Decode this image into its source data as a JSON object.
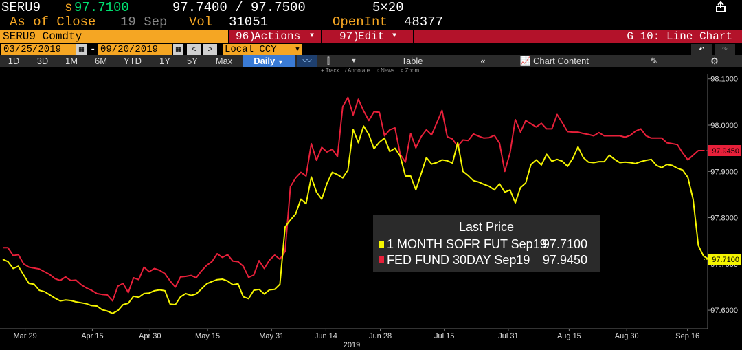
{
  "quote": {
    "ticker": "SERU9",
    "last_prefix": "s",
    "last": "97.7100",
    "bid_ask": "97.7400 / 97.7500",
    "size": "5×20"
  },
  "sub": {
    "as_of": "As of Close",
    "date": "19 Sep",
    "vol_label": "Vol",
    "vol": "31051",
    "oi_label": "OpenInt",
    "oi": "48377"
  },
  "menu": {
    "security": "SERU9 Comdty",
    "actions_num": "96)",
    "actions": "Actions",
    "edit_num": "97)",
    "edit": "Edit",
    "function": "G 10: Line Chart"
  },
  "dates": {
    "start": "03/25/2019",
    "end": "09/20/2019",
    "currency": "Local CCY"
  },
  "tabs": [
    "1D",
    "3D",
    "1M",
    "6M",
    "YTD",
    "1Y",
    "5Y",
    "Max",
    "Daily"
  ],
  "toolbar": {
    "table": "Table",
    "chart_content": "Chart Content",
    "track": "Track",
    "annotate": "Annotate",
    "news": "News",
    "zoom": "Zoom"
  },
  "legend": {
    "title": "Last Price",
    "items": [
      {
        "name": "1 MONTH SOFR FUT Sep19",
        "value": "97.7100",
        "color": "#f5f500"
      },
      {
        "name": "FED FUND 30DAY Sep19",
        "value": "97.9450",
        "color": "#e8203a"
      }
    ]
  },
  "chart_data": {
    "type": "line",
    "x_ticks": [
      "Mar 29",
      "Apr 15",
      "Apr 30",
      "May 15",
      "May 31",
      "Jun 14",
      "Jun 28",
      "Jul 15",
      "Jul 31",
      "Aug 15",
      "Aug 30",
      "Sep 16"
    ],
    "year_label": "2019",
    "y_ticks": [
      "98.1000",
      "98.0000",
      "97.9000",
      "97.8000",
      "97.7000",
      "97.6000"
    ],
    "ylim": [
      97.56,
      98.11
    ],
    "last_labels": [
      "97.9450",
      "97.7100"
    ],
    "series": [
      {
        "name": "FED FUND 30DAY Sep19",
        "color": "#e8203a",
        "values": [
          97.735,
          97.735,
          97.718,
          97.72,
          97.7,
          97.693,
          97.691,
          97.689,
          97.683,
          97.677,
          97.668,
          97.664,
          97.672,
          97.664,
          97.665,
          97.655,
          97.648,
          97.643,
          97.636,
          97.634,
          97.633,
          97.62,
          97.652,
          97.658,
          97.638,
          97.67,
          97.666,
          97.693,
          97.683,
          97.69,
          97.686,
          97.679,
          97.663,
          97.65,
          97.672,
          97.673,
          97.675,
          97.67,
          97.685,
          97.697,
          97.705,
          97.722,
          97.714,
          97.72,
          97.706,
          97.705,
          97.695,
          97.671,
          97.676,
          97.707,
          97.69,
          97.708,
          97.719,
          97.71,
          97.727,
          97.867,
          97.886,
          97.898,
          97.89,
          97.96,
          97.924,
          97.952,
          97.942,
          97.948,
          97.932,
          98.04,
          98.06,
          98.022,
          98.056,
          98.031,
          98.01,
          98.029,
          98.028,
          97.977,
          97.99,
          97.994,
          97.937,
          97.92,
          97.982,
          97.951,
          97.975,
          97.99,
          97.979,
          98.005,
          98.032,
          97.975,
          97.97,
          97.954,
          97.968,
          97.967,
          97.981,
          97.976,
          97.972,
          97.973,
          97.978,
          97.961,
          97.9,
          97.94,
          98.012,
          97.985,
          98.01,
          98.003,
          97.996,
          98.004,
          97.992,
          97.992,
          98.023,
          98.005,
          97.986,
          97.985,
          97.985,
          97.982,
          97.98,
          97.977,
          97.984,
          97.977,
          97.977,
          97.977,
          97.977,
          97.974,
          97.978,
          97.987,
          97.992,
          97.977,
          97.972,
          97.972,
          97.972,
          97.962,
          97.96,
          97.958,
          97.94,
          97.925,
          97.935,
          97.945,
          97.945
        ]
      },
      {
        "name": "1 MONTH SOFR FUT Sep19",
        "color": "#f5f500",
        "values": [
          97.71,
          97.705,
          97.69,
          97.695,
          97.676,
          97.658,
          97.656,
          97.643,
          97.64,
          97.633,
          97.626,
          97.62,
          97.622,
          97.621,
          97.618,
          97.616,
          97.614,
          97.61,
          97.609,
          97.601,
          97.598,
          97.593,
          97.599,
          97.612,
          97.615,
          97.63,
          97.628,
          97.636,
          97.637,
          97.642,
          97.644,
          97.642,
          97.613,
          97.612,
          97.629,
          97.636,
          97.632,
          97.635,
          97.646,
          97.657,
          97.662,
          97.666,
          97.667,
          97.663,
          97.655,
          97.657,
          97.629,
          97.625,
          97.643,
          97.645,
          97.635,
          97.644,
          97.645,
          97.656,
          97.78,
          97.795,
          97.808,
          97.84,
          97.83,
          97.888,
          97.855,
          97.84,
          97.874,
          97.898,
          97.893,
          97.886,
          97.903,
          97.991,
          97.962,
          97.998,
          97.98,
          97.949,
          97.963,
          97.972,
          97.943,
          97.95,
          97.933,
          97.89,
          97.89,
          97.86,
          97.895,
          97.93,
          97.916,
          97.919,
          97.925,
          97.923,
          97.918,
          97.962,
          97.9,
          97.891,
          97.88,
          97.877,
          97.872,
          97.868,
          97.86,
          97.873,
          97.855,
          97.86,
          97.832,
          97.865,
          97.875,
          97.915,
          97.925,
          97.914,
          97.937,
          97.922,
          97.926,
          97.922,
          97.911,
          97.928,
          97.953,
          97.93,
          97.92,
          97.919,
          97.921,
          97.921,
          97.935,
          97.926,
          97.919,
          97.92,
          97.919,
          97.917,
          97.921,
          97.924,
          97.926,
          97.913,
          97.908,
          97.915,
          97.913,
          97.907,
          97.903,
          97.887,
          97.84,
          97.74,
          97.717,
          97.71,
          97.71
        ]
      }
    ]
  }
}
